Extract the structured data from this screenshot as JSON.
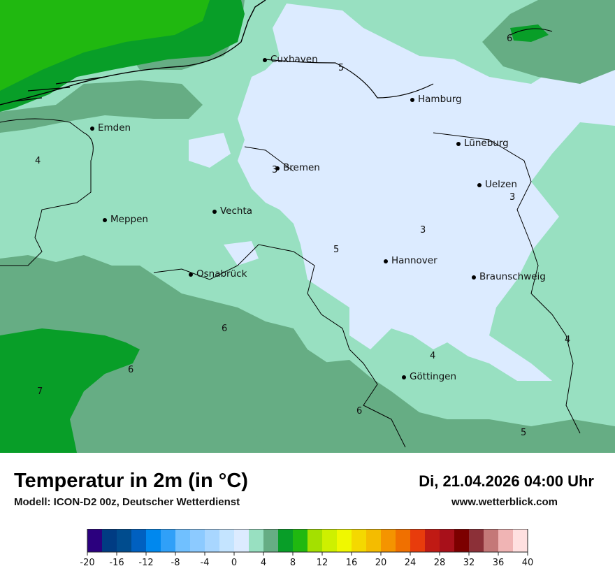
{
  "title": "Temperatur in 2m (in °C)",
  "model": "Modell: ICON-D2 00z, Deutscher Wetterdienst",
  "datetime": "Di, 21.04.2026 04:00 Uhr",
  "website": "www.wetterblick.com",
  "colors": {
    "t3": "#dcebff",
    "t5": "#98e0c1",
    "t6": "#66ad84",
    "t7": "#089e28",
    "t8": "#20b810",
    "sea": "#98e0c1"
  },
  "cities": [
    "Cuxhaven",
    "Hamburg",
    "Emden",
    "Lüneburg",
    "Bremen",
    "Uelzen",
    "Meppen",
    "Vechta",
    "Hannover",
    "Osnabrück",
    "Braunschweig",
    "Göttingen"
  ],
  "isolines": [
    "5",
    "6",
    "4",
    "3",
    "3",
    "3",
    "5",
    "6",
    "6",
    "4",
    "4",
    "7",
    "6",
    "5"
  ],
  "legend": {
    "colors": [
      "#2b007e",
      "#003c83",
      "#004c8e",
      "#0060c0",
      "#0088ee",
      "#30a0f8",
      "#70c0ff",
      "#8ccaff",
      "#a8d6ff",
      "#c4e4ff",
      "#dcebff",
      "#98e0c1",
      "#66ad84",
      "#089e28",
      "#20b810",
      "#a4e000",
      "#cef000",
      "#f0f800",
      "#f4d800",
      "#f4bc00",
      "#f49400",
      "#f07000",
      "#e83c0c",
      "#c01a14",
      "#a8101a",
      "#7c0000",
      "#8c3038",
      "#c47878",
      "#f0b4b4",
      "#ffe0e0"
    ],
    "ticks": [
      "-20",
      "-16",
      "-12",
      "-8",
      "-4",
      "0",
      "4",
      "8",
      "12",
      "16",
      "20",
      "24",
      "28",
      "32",
      "36",
      "40"
    ]
  }
}
